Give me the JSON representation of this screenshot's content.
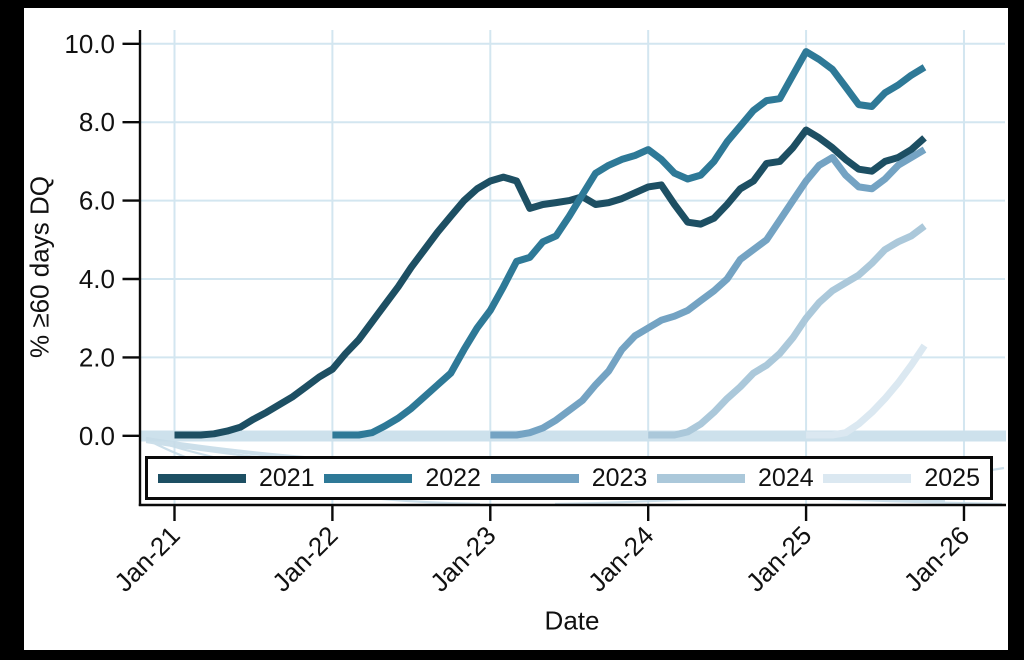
{
  "figure": {
    "outer_background": "#000000",
    "panel_background": "#ffffff",
    "axis_color": "#0a0a0a",
    "text_color": "#111111"
  },
  "chart_data": {
    "type": "line",
    "title": "",
    "xlabel": "Date",
    "ylabel": "% ≥60 days DQ",
    "x_tick_labels": [
      "Jan-21",
      "Jan-22",
      "Jan-23",
      "Jan-24",
      "Jan-25",
      "Jan-26"
    ],
    "x_tick_months": [
      0,
      12,
      24,
      36,
      48,
      60
    ],
    "y_tick_labels": [
      "0.0",
      "2.0",
      "4.0",
      "6.0",
      "8.0",
      "10.0"
    ],
    "y_ticks": [
      0,
      2,
      4,
      6,
      8,
      10
    ],
    "ylim": [
      0,
      10.35
    ],
    "xlim_months": [
      -2.6,
      63.1
    ],
    "grid": true,
    "gridline_color": "#d3e6f0",
    "zero_band_color": "#cde1ec",
    "artifact_color": "#c7dce8",
    "legend_position": "bottom",
    "x_unit": "month, monthly observations from vintage origination (Jan-21 to Oct-25)",
    "series": [
      {
        "name": "2021",
        "color": "#1d4f63",
        "start_month": 0,
        "values": [
          0.02,
          0.02,
          0.02,
          0.05,
          0.12,
          0.22,
          0.42,
          0.6,
          0.8,
          1.0,
          1.25,
          1.5,
          1.7,
          2.1,
          2.45,
          2.9,
          3.35,
          3.8,
          4.3,
          4.75,
          5.2,
          5.6,
          6.0,
          6.3,
          6.5,
          6.6,
          6.5,
          5.8,
          5.9,
          5.95,
          6.0,
          6.1,
          5.9,
          5.95,
          6.05,
          6.2,
          6.35,
          6.4,
          5.9,
          5.45,
          5.4,
          5.55,
          5.9,
          6.3,
          6.5,
          6.95,
          7.0,
          7.35,
          7.8,
          7.6,
          7.35,
          7.05,
          6.8,
          6.75,
          7.0,
          7.1,
          7.3,
          7.6
        ]
      },
      {
        "name": "2022",
        "color": "#2e7997",
        "start_month": 12,
        "values": [
          0.02,
          0.02,
          0.02,
          0.08,
          0.25,
          0.45,
          0.7,
          1.0,
          1.3,
          1.6,
          2.2,
          2.75,
          3.2,
          3.8,
          4.45,
          4.55,
          4.95,
          5.1,
          5.6,
          6.15,
          6.7,
          6.9,
          7.05,
          7.15,
          7.3,
          7.05,
          6.7,
          6.55,
          6.65,
          7.0,
          7.5,
          7.9,
          8.3,
          8.55,
          8.6,
          9.2,
          9.8,
          9.6,
          9.35,
          8.9,
          8.45,
          8.4,
          8.75,
          8.95,
          9.2,
          9.4
        ]
      },
      {
        "name": "2023",
        "color": "#74a3c3",
        "start_month": 24,
        "values": [
          0.02,
          0.02,
          0.02,
          0.08,
          0.2,
          0.4,
          0.65,
          0.9,
          1.3,
          1.65,
          2.2,
          2.55,
          2.75,
          2.95,
          3.05,
          3.2,
          3.45,
          3.7,
          4.0,
          4.5,
          4.75,
          5.0,
          5.5,
          6.0,
          6.5,
          6.9,
          7.1,
          6.65,
          6.35,
          6.3,
          6.55,
          6.9,
          7.1,
          7.3
        ]
      },
      {
        "name": "2024",
        "color": "#abc8da",
        "start_month": 36,
        "values": [
          0.02,
          0.02,
          0.02,
          0.1,
          0.3,
          0.6,
          0.95,
          1.25,
          1.6,
          1.8,
          2.1,
          2.5,
          3.0,
          3.4,
          3.7,
          3.9,
          4.1,
          4.4,
          4.75,
          4.95,
          5.1,
          5.35
        ]
      },
      {
        "name": "2025",
        "color": "#dbe8f1",
        "start_month": 48,
        "values": [
          0.02,
          0.02,
          0.02,
          0.08,
          0.3,
          0.6,
          0.95,
          1.35,
          1.8,
          2.3
        ]
      }
    ]
  }
}
